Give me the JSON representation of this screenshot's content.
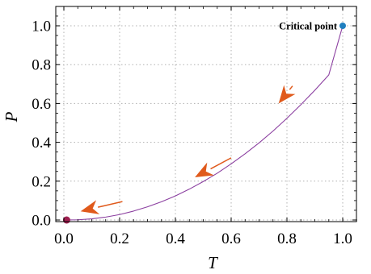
{
  "chart_data": {
    "type": "line",
    "title": "",
    "xlabel": "T",
    "ylabel": "P",
    "xlim": [
      0,
      1.1
    ],
    "ylim": [
      0,
      1.1
    ],
    "x_ticks": [
      0.0,
      0.2,
      0.4,
      0.6,
      0.8,
      1.0
    ],
    "x_tick_labels": [
      "0.0",
      "0.2",
      "0.4",
      "0.6",
      "0.8",
      "1.0"
    ],
    "y_ticks": [
      0.0,
      0.2,
      0.4,
      0.6,
      0.8,
      1.0
    ],
    "y_tick_labels": [
      "0.0",
      "0.2",
      "0.4",
      "0.6",
      "0.8",
      "1.0"
    ],
    "grid": true,
    "series": [
      {
        "color": "#8b3fa0",
        "x": [
          0.0,
          0.05,
          0.1,
          0.15,
          0.2,
          0.25,
          0.3,
          0.35,
          0.4,
          0.45,
          0.5,
          0.55,
          0.6,
          0.65,
          0.7,
          0.75,
          0.8,
          0.85,
          0.9,
          0.95,
          1.0
        ],
        "y": [
          0.0,
          0.001,
          0.006,
          0.015,
          0.028,
          0.046,
          0.068,
          0.094,
          0.124,
          0.159,
          0.198,
          0.241,
          0.289,
          0.341,
          0.397,
          0.458,
          0.524,
          0.594,
          0.668,
          0.747,
          1.0
        ]
      }
    ],
    "points": [
      {
        "label": "Critical point",
        "x": 1.0,
        "y": 1.0,
        "color": "#1f7fbf"
      },
      {
        "label": "",
        "x": 0.01,
        "y": 0.0,
        "color": "#9e1f4f"
      }
    ],
    "arrows": [
      {
        "from": [
          0.82,
          0.69
        ],
        "to": [
          0.77,
          0.6
        ],
        "color": "#e05a1c"
      },
      {
        "from": [
          0.6,
          0.32
        ],
        "to": [
          0.47,
          0.22
        ],
        "color": "#e05a1c"
      },
      {
        "from": [
          0.21,
          0.095
        ],
        "to": [
          0.06,
          0.045
        ],
        "color": "#e05a1c"
      }
    ],
    "annotations": [
      {
        "text": "Critical point",
        "x": 1.0,
        "y": 1.0
      }
    ],
    "colors": {
      "curve": "#8b3fa0",
      "arrow": "#e05a1c",
      "critical_point": "#1f7fbf",
      "end_point": "#9e1f4f",
      "grid": "#b0b0b0"
    }
  }
}
